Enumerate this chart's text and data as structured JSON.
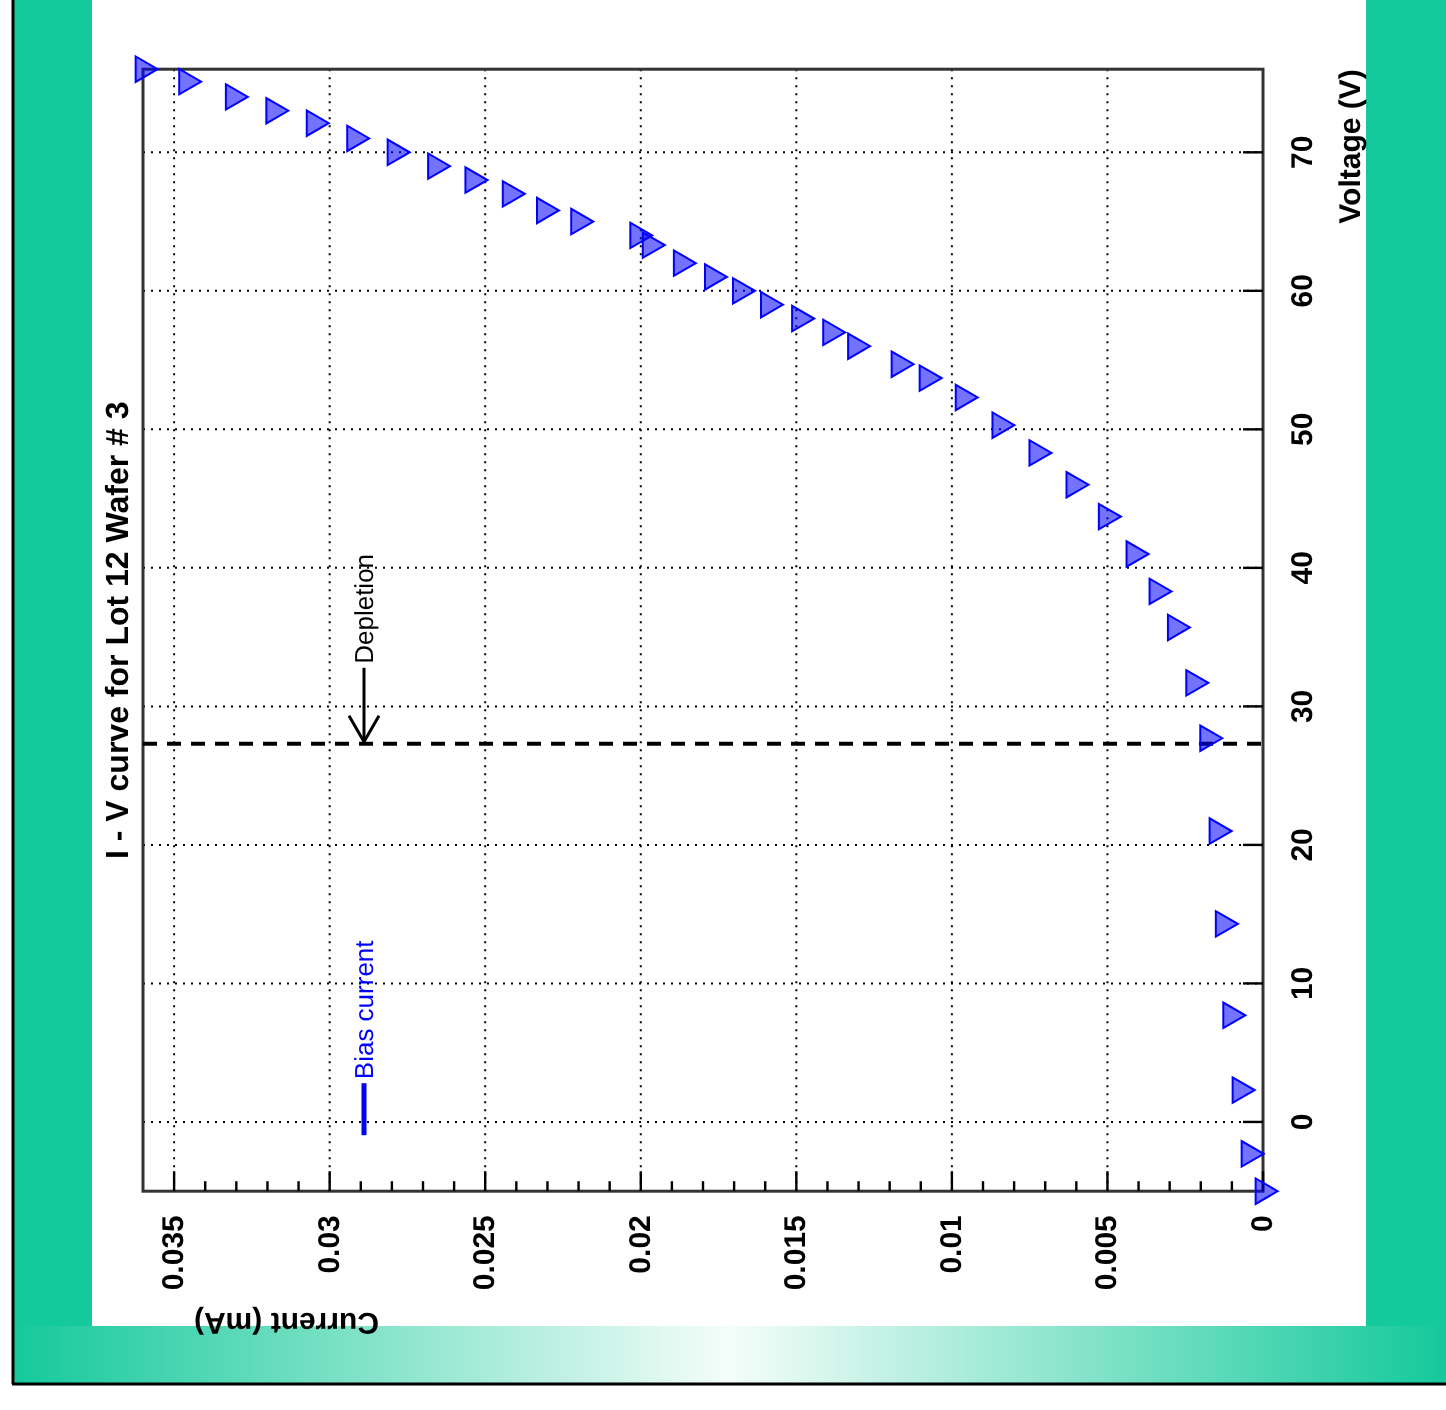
{
  "chart_data": {
    "type": "scatter",
    "title": "I - V curve for Lot 12 Wafer # 3",
    "xlabel": "Current (mA)",
    "ylabel": "Voltage (V)",
    "xlim": [
      0.036,
      0
    ],
    "ylim": [
      -5,
      76
    ],
    "xticks": [
      0.035,
      {
        "value": 0.034,
        "label": null
      },
      {
        "value": 0.033,
        "label": null
      },
      {
        "value": 0.032,
        "label": null
      },
      {
        "value": 0.031,
        "label": null
      },
      0.03,
      {
        "value": 0.029,
        "label": null
      },
      {
        "value": 0.028,
        "label": null
      },
      {
        "value": 0.027,
        "label": null
      },
      {
        "value": 0.026,
        "label": null
      },
      0.025,
      {
        "value": 0.024,
        "label": null
      },
      {
        "value": 0.023,
        "label": null
      },
      {
        "value": 0.022,
        "label": null
      },
      {
        "value": 0.021,
        "label": null
      },
      0.02,
      {
        "value": 0.019,
        "label": null
      },
      {
        "value": 0.018,
        "label": null
      },
      {
        "value": 0.017,
        "label": null
      },
      {
        "value": 0.016,
        "label": null
      },
      0.015,
      {
        "value": 0.014,
        "label": null
      },
      {
        "value": 0.013,
        "label": null
      },
      {
        "value": 0.012,
        "label": null
      },
      {
        "value": 0.011,
        "label": null
      },
      0.01,
      {
        "value": 0.009,
        "label": null
      },
      {
        "value": 0.008,
        "label": null
      },
      {
        "value": 0.007,
        "label": null
      },
      {
        "value": 0.006,
        "label": null
      },
      0.005,
      {
        "value": 0.004,
        "label": null
      },
      {
        "value": 0.003,
        "label": null
      },
      {
        "value": 0.002,
        "label": null
      },
      {
        "value": 0.001,
        "label": null
      },
      0
    ],
    "yticks": [
      0,
      10,
      20,
      30,
      40,
      50,
      60,
      70
    ],
    "grid": true,
    "legend": "bottom left",
    "marker": "triangle",
    "ref_lines": [
      {
        "axis": "y",
        "value": 27.3,
        "label": "Depletion",
        "color": "#000000",
        "line_style": "dashed"
      }
    ],
    "series": [
      {
        "name": "Bias current",
        "color": "#0000ff",
        "x": [
          0,
          0.00045,
          0.00074,
          0.00104,
          0.00128,
          0.00148,
          0.00178,
          0.00223,
          0.00282,
          0.00341,
          0.00415,
          0.00504,
          0.00608,
          0.00727,
          0.00846,
          0.00964,
          0.0108,
          0.0117,
          0.0131,
          0.0139,
          0.0149,
          0.0159,
          0.0168,
          0.0177,
          0.0187,
          0.0197,
          0.0201,
          0.022,
          0.0231,
          0.0242,
          0.0254,
          0.0266,
          0.0279,
          0.0292,
          0.0305,
          0.0318,
          0.0331,
          0.0346,
          0.036
        ],
        "values": [
          -5,
          -2.3,
          2.3,
          7.7,
          14.3,
          21,
          27.7,
          31.7,
          35.7,
          38.3,
          41,
          43.7,
          46,
          48.3,
          50.3,
          52.3,
          53.7,
          54.7,
          56,
          57,
          58,
          59,
          60,
          61,
          62,
          63.3,
          64,
          65,
          65.8,
          67,
          68,
          69,
          70,
          71,
          72.1,
          73,
          74,
          75.1,
          76
        ]
      }
    ]
  }
}
